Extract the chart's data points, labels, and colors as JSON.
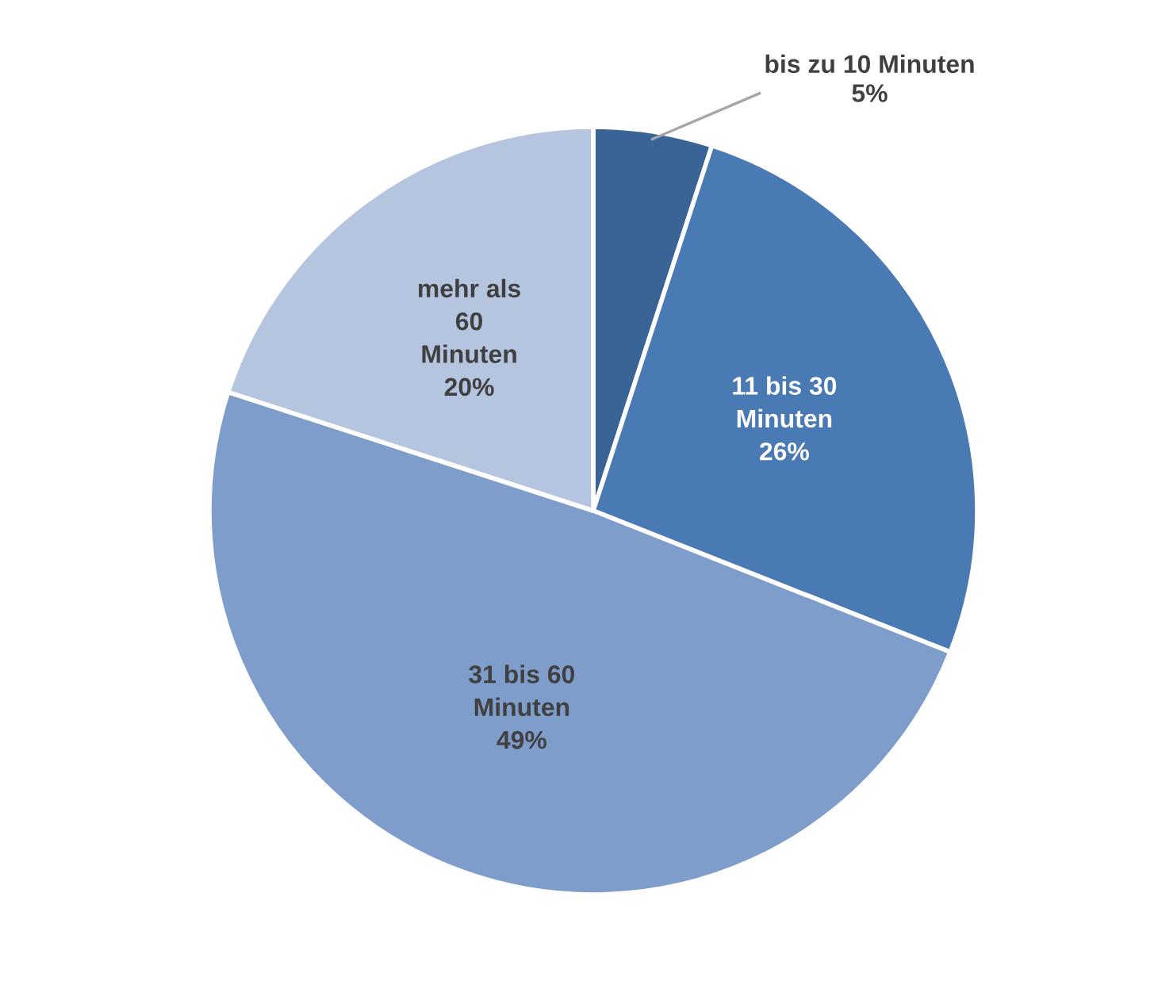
{
  "chart_data": {
    "type": "pie",
    "categories": [
      "bis zu 10 Minuten",
      "11 bis 30 Minuten",
      "31 bis 60 Minuten",
      "mehr als 60 Minuten"
    ],
    "values": [
      5,
      26,
      49,
      20
    ],
    "colors": [
      "#3a6496",
      "#4a7ab4",
      "#7f9dca",
      "#b5c4df"
    ],
    "value_labels": [
      "5%",
      "26%",
      "49%",
      "20%"
    ],
    "legend": false
  }
}
